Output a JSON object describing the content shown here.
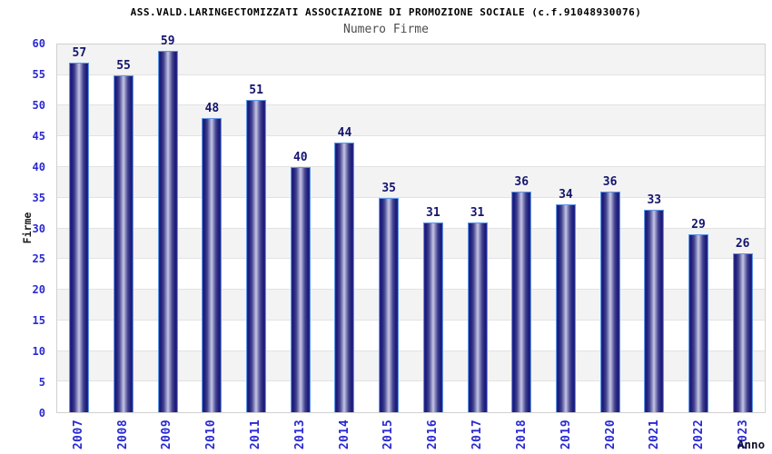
{
  "header": {
    "title": "ASS.VALD.LARINGECTOMIZZATI ASSOCIAZIONE DI PROMOZIONE SOCIALE (c.f.91048930076)",
    "subtitle": "Numero Firme"
  },
  "chart_data": {
    "type": "bar",
    "title": "Numero Firme",
    "categories": [
      "2007",
      "2008",
      "2009",
      "2010",
      "2011",
      "2013",
      "2014",
      "2015",
      "2016",
      "2017",
      "2018",
      "2019",
      "2020",
      "2021",
      "2022",
      "2023"
    ],
    "values": [
      57,
      55,
      59,
      48,
      51,
      40,
      44,
      35,
      31,
      31,
      36,
      34,
      36,
      33,
      29,
      26
    ],
    "xlabel": "Anno",
    "ylabel": "Firme",
    "ylim": [
      0,
      60
    ],
    "ytick_step": 5,
    "grid": "horizontal-bands-alternating",
    "legend": "none",
    "colors": {
      "bar_dark": "#1a1a78",
      "bar_light": "#c6c6e6",
      "bar_border": "#5f98e6",
      "axis_tick_label": "#2a2ad2",
      "value_label": "#15156e",
      "band_gray": "#f3f3f3",
      "band_white": "#ffffff",
      "gridline": "#e2e2e2",
      "plot_border": "#d0d0d0",
      "title_color": "#000000",
      "subtitle_color": "#4d4d4d"
    }
  }
}
